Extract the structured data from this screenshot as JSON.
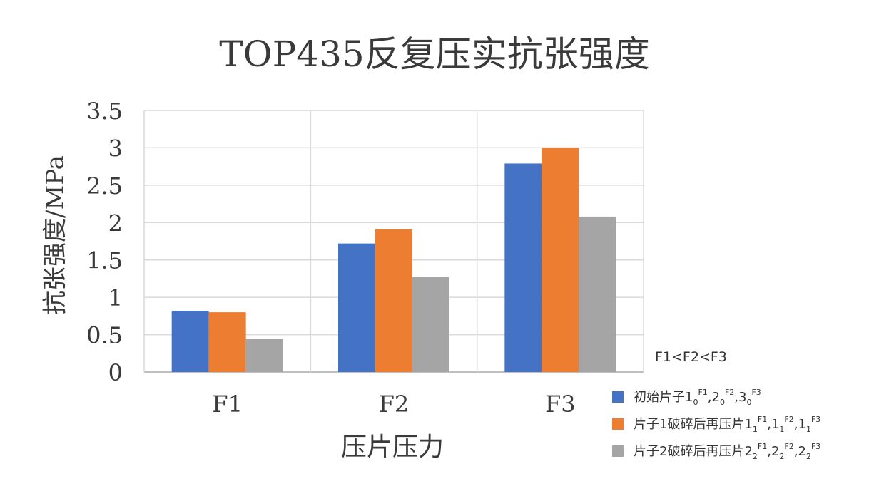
{
  "chart_data": {
    "type": "bar",
    "title": "TOP435反复压实抗张强度",
    "xlabel": "压片压力",
    "ylabel": "抗张强度/MPa",
    "categories": [
      "F1",
      "F2",
      "F3"
    ],
    "ylim": [
      0,
      3.5
    ],
    "yticks": [
      "0",
      "0.5",
      "1",
      "1.5",
      "2",
      "2.5",
      "3",
      "3.5"
    ],
    "grid": true,
    "legend_position": "bottom-right",
    "note": "F1<F2<F3",
    "series": [
      {
        "name_text": "初始片子",
        "name_parts": [
          {
            "base": "1",
            "sub": "0",
            "sup": "F1"
          },
          {
            "base": "2",
            "sub": "0",
            "sup": "F2"
          },
          {
            "base": "3",
            "sub": "0",
            "sup": "F3"
          }
        ],
        "color": "#4472C4",
        "values": [
          0.82,
          1.72,
          2.79
        ]
      },
      {
        "name_text": "片子1破碎后再压片",
        "name_parts": [
          {
            "base": "1",
            "sub": "1",
            "sup": "F1"
          },
          {
            "base": "1",
            "sub": "1",
            "sup": "F2"
          },
          {
            "base": "1",
            "sub": "1",
            "sup": "F3"
          }
        ],
        "color": "#ED7D31",
        "values": [
          0.8,
          1.91,
          3.0
        ]
      },
      {
        "name_text": "片子2破碎后再压片",
        "name_parts": [
          {
            "base": "2",
            "sub": "2",
            "sup": "F1"
          },
          {
            "base": "2",
            "sub": "2",
            "sup": "F2"
          },
          {
            "base": "2",
            "sub": "2",
            "sup": "F3"
          }
        ],
        "color": "#A5A5A5",
        "values": [
          0.44,
          1.27,
          2.08
        ]
      }
    ]
  }
}
